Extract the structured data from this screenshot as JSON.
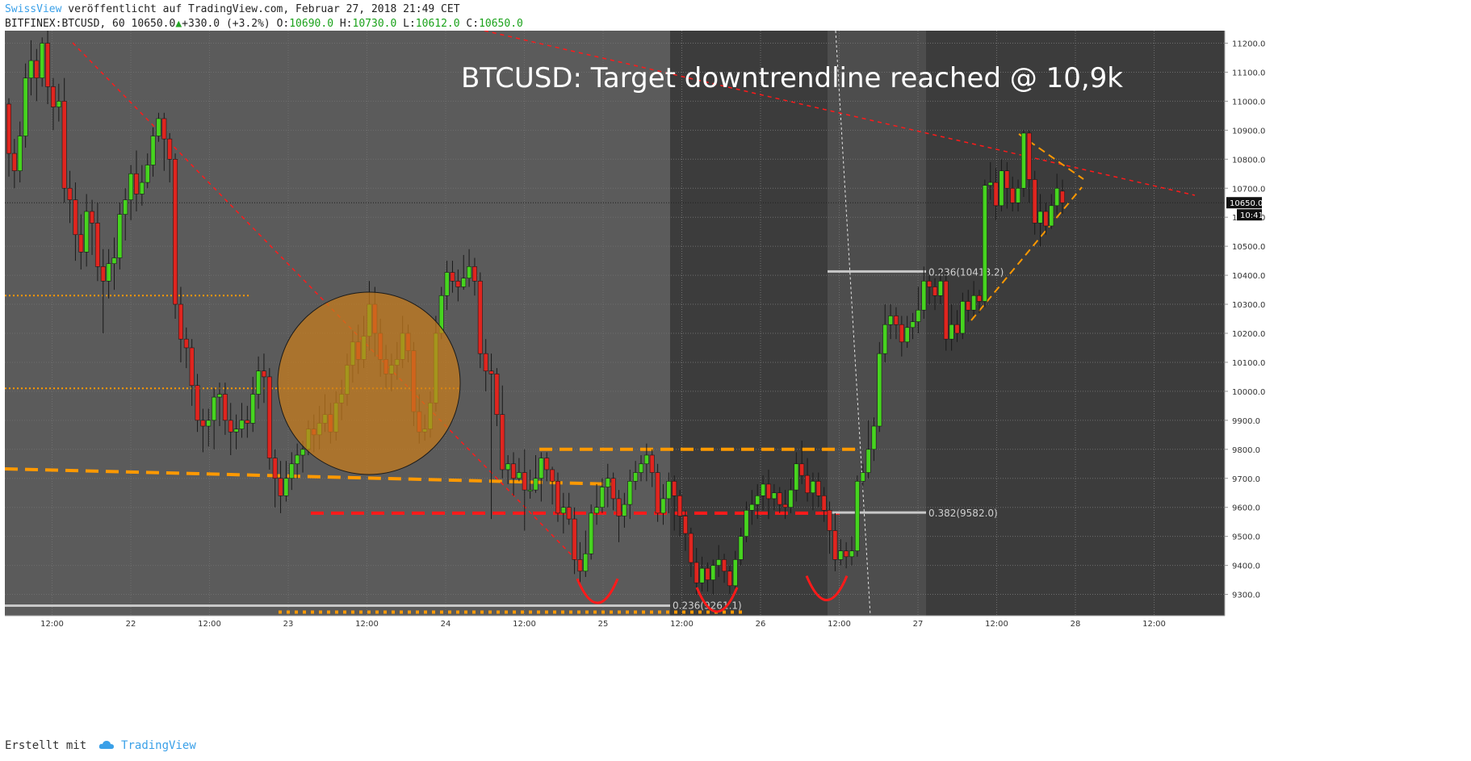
{
  "header": {
    "author": "SwissView",
    "published_text": "veröffentlicht auf TradingView.com, Februar 27, 2018 21:49 CET",
    "symbol": "BITFINEX:BTCUSD, 60",
    "last": "10650.0",
    "change_arrow": "▲",
    "change": "+330.0 (+3.2%)",
    "o_label": "O:",
    "o": "10690.0",
    "h_label": "H:",
    "h": "10730.0",
    "l_label": "L:",
    "l": "10612.0",
    "c_label": "C:",
    "c": "10650.0"
  },
  "footer": {
    "created_with": "Erstellt mit",
    "brand": "TradingView",
    "logo_icon": "cloud-icon"
  },
  "colors": {
    "bull": "#46d41f",
    "bear": "#e0251f",
    "orange_candle": "#ff6600",
    "support": "#ff9900",
    "resistance_red": "#ff1a1a",
    "circle_fill": "#c97d1c",
    "fib": "#c8c8c8",
    "bg_light": "#5b5b5b",
    "bg_dark": "#3c3c3c",
    "bg_mid": "#4d4d4d"
  },
  "chart_data": {
    "type": "candlestick",
    "title": "BTCUSD: Target downtrendline reached @ 10,9k",
    "symbol": "BITFINEX:BTCUSD",
    "interval": "60",
    "ylim": [
      9220,
      11250
    ],
    "y_ticks": [
      9300,
      9400,
      9500,
      9600,
      9700,
      9800,
      9900,
      10000,
      10100,
      10200,
      10300,
      10400,
      10500,
      10600,
      10700,
      10800,
      10900,
      11000,
      11100,
      11200
    ],
    "x_ticks": [
      {
        "label": "12:00",
        "t": 0.3
      },
      {
        "label": "22",
        "t": 0.8
      },
      {
        "label": "12:00",
        "t": 1.3
      },
      {
        "label": "23",
        "t": 1.8
      },
      {
        "label": "12:00",
        "t": 2.3
      },
      {
        "label": "24",
        "t": 2.8
      },
      {
        "label": "12:00",
        "t": 3.3
      },
      {
        "label": "25",
        "t": 3.8
      },
      {
        "label": "12:00",
        "t": 4.3
      },
      {
        "label": "26",
        "t": 4.8
      },
      {
        "label": "12:00",
        "t": 5.3
      },
      {
        "label": "27",
        "t": 5.8
      },
      {
        "label": "12:00",
        "t": 6.3
      },
      {
        "label": "28",
        "t": 6.8
      },
      {
        "label": "12:00",
        "t": 7.3
      }
    ],
    "last_price_label": "10650.0",
    "countdown_label": "10:41",
    "last_price": 10650,
    "candles": [
      [
        10990,
        10820,
        11010,
        10740
      ],
      [
        10820,
        10760,
        10870,
        10700
      ],
      [
        10760,
        10880,
        10930,
        10720
      ],
      [
        10880,
        11080,
        11130,
        10840
      ],
      [
        11080,
        11140,
        11210,
        11020
      ],
      [
        11140,
        11080,
        11180,
        11000
      ],
      [
        11080,
        11200,
        11220,
        11050
      ],
      [
        11200,
        11050,
        11250,
        10990
      ],
      [
        11050,
        10980,
        11080,
        10900
      ],
      [
        10980,
        11000,
        11060,
        10930
      ],
      [
        11000,
        10700,
        11080,
        10650
      ],
      [
        10700,
        10660,
        10760,
        10580
      ],
      [
        10660,
        10540,
        10720,
        10450
      ],
      [
        10540,
        10480,
        10610,
        10420
      ],
      [
        10480,
        10620,
        10680,
        10430
      ],
      [
        10620,
        10580,
        10660,
        10470
      ],
      [
        10580,
        10430,
        10650,
        10380
      ],
      [
        10430,
        10380,
        10490,
        10200
      ],
      [
        10380,
        10440,
        10490,
        10320
      ],
      [
        10440,
        10460,
        10530,
        10350
      ],
      [
        10460,
        10610,
        10650,
        10420
      ],
      [
        10610,
        10660,
        10700,
        10520
      ],
      [
        10660,
        10750,
        10780,
        10590
      ],
      [
        10750,
        10680,
        10830,
        10620
      ],
      [
        10680,
        10720,
        10780,
        10640
      ],
      [
        10720,
        10780,
        10820,
        10700
      ],
      [
        10780,
        10880,
        10910,
        10740
      ],
      [
        10880,
        10940,
        10960,
        10860
      ],
      [
        10940,
        10870,
        10960,
        10760
      ],
      [
        10870,
        10800,
        10890,
        10720
      ],
      [
        10800,
        10300,
        10820,
        10250
      ],
      [
        10300,
        10180,
        10360,
        10100
      ],
      [
        10180,
        10150,
        10220,
        10080
      ],
      [
        10150,
        10020,
        10180,
        9950
      ],
      [
        10020,
        9900,
        10060,
        9860
      ],
      [
        9900,
        9880,
        9940,
        9790
      ],
      [
        9880,
        9900,
        9940,
        9810
      ],
      [
        9900,
        9980,
        10010,
        9800
      ],
      [
        9980,
        9990,
        10030,
        9880
      ],
      [
        9990,
        9900,
        10030,
        9850
      ],
      [
        9900,
        9860,
        9960,
        9780
      ],
      [
        9860,
        9870,
        9920,
        9800
      ],
      [
        9870,
        9900,
        9960,
        9840
      ],
      [
        9900,
        9890,
        9950,
        9840
      ],
      [
        9890,
        9990,
        10050,
        9860
      ],
      [
        9990,
        10070,
        10120,
        9940
      ],
      [
        10070,
        10050,
        10130,
        9960
      ],
      [
        10050,
        9770,
        10080,
        9730
      ],
      [
        9770,
        9700,
        9800,
        9600
      ],
      [
        9700,
        9640,
        9760,
        9580
      ],
      [
        9640,
        9700,
        9760,
        9620
      ],
      [
        9700,
        9750,
        9790,
        9660
      ],
      [
        9750,
        9780,
        9820,
        9700
      ],
      [
        9780,
        9800,
        9830,
        9720
      ],
      [
        9800,
        9870,
        9900,
        9780
      ],
      [
        9870,
        9850,
        9920,
        9790
      ],
      [
        9850,
        9890,
        9950,
        9800
      ],
      [
        9890,
        9920,
        9990,
        9860
      ],
      [
        9920,
        9860,
        9960,
        9820
      ],
      [
        9860,
        9960,
        10000,
        9830
      ],
      [
        9960,
        9990,
        10040,
        9900
      ],
      [
        9990,
        10090,
        10130,
        9950
      ],
      [
        10090,
        10170,
        10210,
        10030
      ],
      [
        10170,
        10110,
        10230,
        10060
      ],
      [
        10110,
        10190,
        10260,
        10080
      ],
      [
        10190,
        10300,
        10380,
        10140
      ],
      [
        10300,
        10200,
        10360,
        10120
      ],
      [
        10200,
        10110,
        10250,
        10050
      ],
      [
        10110,
        10060,
        10160,
        10010
      ],
      [
        10060,
        10090,
        10130,
        10000
      ],
      [
        10090,
        10110,
        10170,
        10040
      ],
      [
        10110,
        10200,
        10260,
        10080
      ],
      [
        10200,
        10140,
        10230,
        10100
      ],
      [
        10140,
        9930,
        10170,
        9880
      ],
      [
        9930,
        9860,
        9990,
        9820
      ],
      [
        9860,
        9870,
        9920,
        9830
      ],
      [
        9870,
        9960,
        10000,
        9840
      ],
      [
        9960,
        10200,
        10260,
        9930
      ],
      [
        10200,
        10330,
        10360,
        10180
      ],
      [
        10330,
        10410,
        10450,
        10280
      ],
      [
        10410,
        10380,
        10450,
        10340
      ],
      [
        10380,
        10360,
        10420,
        10310
      ],
      [
        10360,
        10390,
        10470,
        10350
      ],
      [
        10390,
        10430,
        10490,
        10360
      ],
      [
        10430,
        10380,
        10460,
        10330
      ],
      [
        10380,
        10130,
        10410,
        10080
      ],
      [
        10130,
        10070,
        10180,
        10000
      ],
      [
        10070,
        10060,
        10130,
        9560
      ],
      [
        10060,
        9920,
        10080,
        9880
      ],
      [
        9920,
        9730,
        10020,
        9700
      ],
      [
        9730,
        9750,
        9780,
        9680
      ],
      [
        9750,
        9700,
        9790,
        9640
      ],
      [
        9700,
        9720,
        9770,
        9690
      ],
      [
        9720,
        9660,
        9800,
        9520
      ],
      [
        9660,
        9660,
        9730,
        9630
      ],
      [
        9660,
        9700,
        9780,
        9650
      ],
      [
        9700,
        9770,
        9790,
        9620
      ],
      [
        9770,
        9730,
        9790,
        9690
      ],
      [
        9730,
        9690,
        9740,
        9610
      ],
      [
        9690,
        9580,
        9720,
        9550
      ],
      [
        9580,
        9600,
        9650,
        9510
      ],
      [
        9600,
        9560,
        9650,
        9540
      ],
      [
        9560,
        9420,
        9600,
        9370
      ],
      [
        9420,
        9380,
        9480,
        9340
      ],
      [
        9380,
        9440,
        9520,
        9360
      ],
      [
        9440,
        9580,
        9610,
        9420
      ],
      [
        9580,
        9600,
        9680,
        9540
      ],
      [
        9600,
        9670,
        9700,
        9580
      ],
      [
        9670,
        9700,
        9750,
        9600
      ],
      [
        9700,
        9630,
        9720,
        9590
      ],
      [
        9630,
        9570,
        9660,
        9480
      ],
      [
        9570,
        9610,
        9650,
        9530
      ],
      [
        9610,
        9690,
        9730,
        9560
      ],
      [
        9690,
        9720,
        9760,
        9660
      ],
      [
        9720,
        9750,
        9780,
        9690
      ],
      [
        9750,
        9780,
        9820,
        9690
      ],
      [
        9780,
        9720,
        9800,
        9670
      ],
      [
        9720,
        9580,
        9750,
        9550
      ],
      [
        9580,
        9630,
        9680,
        9540
      ],
      [
        9630,
        9690,
        9720,
        9580
      ],
      [
        9690,
        9640,
        9710,
        9520
      ],
      [
        9640,
        9570,
        9660,
        9500
      ],
      [
        9570,
        9510,
        9590,
        9450
      ],
      [
        9510,
        9410,
        9530,
        9360
      ],
      [
        9410,
        9340,
        9460,
        9300
      ],
      [
        9340,
        9390,
        9430,
        9310
      ],
      [
        9390,
        9350,
        9410,
        9310
      ],
      [
        9350,
        9400,
        9420,
        9300
      ],
      [
        9400,
        9420,
        9470,
        9360
      ],
      [
        9420,
        9380,
        9440,
        9340
      ],
      [
        9380,
        9330,
        9400,
        9300
      ],
      [
        9330,
        9420,
        9450,
        9310
      ],
      [
        9420,
        9500,
        9530,
        9400
      ],
      [
        9500,
        9590,
        9620,
        9480
      ],
      [
        9590,
        9610,
        9660,
        9540
      ],
      [
        9610,
        9640,
        9680,
        9560
      ],
      [
        9640,
        9680,
        9710,
        9590
      ],
      [
        9680,
        9630,
        9730,
        9560
      ],
      [
        9630,
        9650,
        9680,
        9590
      ],
      [
        9650,
        9610,
        9670,
        9580
      ],
      [
        9610,
        9600,
        9660,
        9560
      ],
      [
        9600,
        9660,
        9700,
        9580
      ],
      [
        9660,
        9750,
        9790,
        9620
      ],
      [
        9750,
        9710,
        9830,
        9680
      ],
      [
        9710,
        9650,
        9770,
        9620
      ],
      [
        9650,
        9690,
        9720,
        9590
      ],
      [
        9690,
        9640,
        9720,
        9600
      ],
      [
        9640,
        9590,
        9670,
        9550
      ],
      [
        9590,
        9520,
        9620,
        9440
      ],
      [
        9520,
        9420,
        9580,
        9380
      ],
      [
        9420,
        9450,
        9490,
        9400
      ],
      [
        9450,
        9430,
        9480,
        9390
      ],
      [
        9430,
        9450,
        9500,
        9400
      ],
      [
        9450,
        9690,
        9710,
        9430
      ],
      [
        9690,
        9720,
        9750,
        9670
      ],
      [
        9720,
        9800,
        9900,
        9700
      ],
      [
        9800,
        9880,
        9910,
        9760
      ],
      [
        9880,
        10130,
        10170,
        9860
      ],
      [
        10130,
        10230,
        10300,
        10100
      ],
      [
        10230,
        10260,
        10300,
        10180
      ],
      [
        10260,
        10230,
        10290,
        10180
      ],
      [
        10230,
        10170,
        10260,
        10120
      ],
      [
        10170,
        10220,
        10260,
        10150
      ],
      [
        10220,
        10240,
        10270,
        10180
      ],
      [
        10240,
        10280,
        10360,
        10200
      ],
      [
        10280,
        10380,
        10430,
        10250
      ],
      [
        10380,
        10360,
        10400,
        10300
      ],
      [
        10360,
        10330,
        10390,
        10280
      ],
      [
        10330,
        10380,
        10420,
        10300
      ],
      [
        10380,
        10180,
        10410,
        10140
      ],
      [
        10180,
        10230,
        10300,
        10140
      ],
      [
        10230,
        10200,
        10280,
        10170
      ],
      [
        10200,
        10310,
        10340,
        10180
      ],
      [
        10310,
        10280,
        10350,
        10240
      ],
      [
        10280,
        10330,
        10380,
        10260
      ],
      [
        10330,
        10310,
        10350,
        10270
      ],
      [
        10310,
        10710,
        10730,
        10290
      ],
      [
        10710,
        10720,
        10790,
        10660
      ],
      [
        10720,
        10640,
        10770,
        10590
      ],
      [
        10640,
        10760,
        10800,
        10620
      ],
      [
        10760,
        10700,
        10790,
        10630
      ],
      [
        10700,
        10650,
        10740,
        10620
      ],
      [
        10650,
        10700,
        10730,
        10620
      ],
      [
        10700,
        10890,
        10900,
        10670
      ],
      [
        10890,
        10730,
        10900,
        10650
      ],
      [
        10730,
        10580,
        10760,
        10540
      ],
      [
        10580,
        10620,
        10680,
        10500
      ],
      [
        10620,
        10570,
        10650,
        10540
      ],
      [
        10570,
        10640,
        10680,
        10560
      ],
      [
        10640,
        10700,
        10750,
        10610
      ],
      [
        10690,
        10650,
        10730,
        10612
      ]
    ],
    "annotations": {
      "fib_labels": [
        "0.236(10413.2)",
        "0.382(9582.0)",
        "0.236(9261.1)"
      ],
      "fib_levels": [
        10413.2,
        9582.0,
        9261.1
      ],
      "support_levels": [
        9800,
        9730,
        9580
      ],
      "dotted_levels": [
        10330,
        10010,
        9250
      ]
    }
  }
}
